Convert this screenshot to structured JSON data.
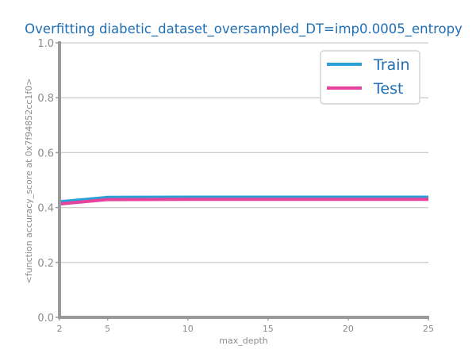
{
  "chart_data": {
    "type": "line",
    "title": "Overfitting diabetic_dataset_oversampled_DT=imp0.0005_entropy",
    "xlabel": "max_depth",
    "ylabel": "<function accuracy_score at 0x7f94852cc1f0>",
    "x": [
      2,
      5,
      10,
      15,
      20,
      25
    ],
    "xticks": [
      "2",
      "5",
      "10",
      "15",
      "20",
      "25"
    ],
    "yticks": [
      "0.0",
      "0.2",
      "0.4",
      "0.6",
      "0.8",
      "1.0"
    ],
    "xlim": [
      2,
      25
    ],
    "ylim": [
      0,
      1
    ],
    "grid": "horizontal",
    "legend_position": "top-right",
    "series": [
      {
        "name": "Train",
        "color": "#2aa0d8",
        "values": [
          0.421,
          0.437,
          0.438,
          0.438,
          0.438,
          0.438
        ]
      },
      {
        "name": "Test",
        "color": "#e8439c",
        "values": [
          0.413,
          0.429,
          0.43,
          0.43,
          0.43,
          0.43
        ]
      }
    ]
  }
}
